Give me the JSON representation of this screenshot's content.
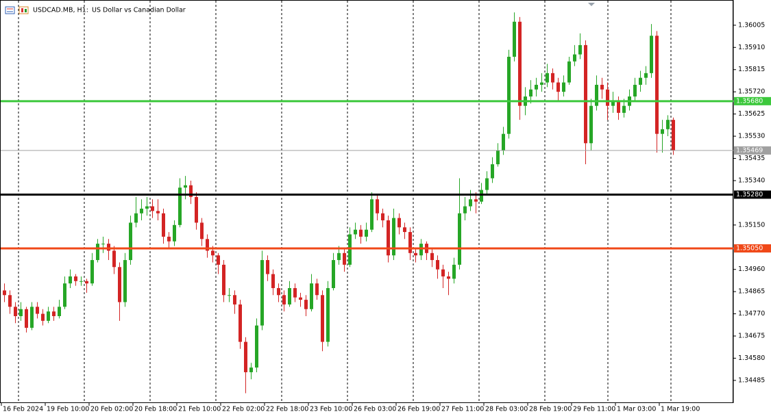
{
  "chart_data": {
    "type": "candlestick",
    "title": "USDCAD.MB, H1:",
    "subtitle": "US Dollar vs Canadian Dollar",
    "up_color": "#26a626",
    "down_color": "#d32424",
    "ylim": [
      1.34391,
      1.3611
    ],
    "yticks": [
      {
        "value": 1.36005,
        "label": "1.36005"
      },
      {
        "value": 1.3591,
        "label": "1.35910"
      },
      {
        "value": 1.35815,
        "label": "1.35815"
      },
      {
        "value": 1.3572,
        "label": "1.35720"
      },
      {
        "value": 1.35625,
        "label": "1.35625"
      },
      {
        "value": 1.3553,
        "label": "1.35530"
      },
      {
        "value": 1.35435,
        "label": "1.35435"
      },
      {
        "value": 1.3534,
        "label": "1.35340"
      },
      {
        "value": 1.3515,
        "label": "1.35150"
      },
      {
        "value": 1.3496,
        "label": "1.34960"
      },
      {
        "value": 1.34865,
        "label": "1.34865"
      },
      {
        "value": 1.3477,
        "label": "1.34770"
      },
      {
        "value": 1.34675,
        "label": "1.34675"
      },
      {
        "value": 1.3458,
        "label": "1.34580"
      },
      {
        "value": 1.34485,
        "label": "1.34485"
      }
    ],
    "xticks": [
      {
        "value": 0,
        "label": "16 Feb 2024"
      },
      {
        "value": 8,
        "label": "19 Feb 10:00"
      },
      {
        "value": 16,
        "label": "20 Feb 02:00"
      },
      {
        "value": 24,
        "label": "20 Feb 18:00"
      },
      {
        "value": 32,
        "label": "21 Feb 10:00"
      },
      {
        "value": 40,
        "label": "22 Feb 02:00"
      },
      {
        "value": 48,
        "label": "22 Feb 18:00"
      },
      {
        "value": 56,
        "label": "23 Feb 10:00"
      },
      {
        "value": 64,
        "label": "26 Feb 03:00"
      },
      {
        "value": 72,
        "label": "26 Feb 19:00"
      },
      {
        "value": 80,
        "label": "27 Feb 11:00"
      },
      {
        "value": 88,
        "label": "28 Feb 03:00"
      },
      {
        "value": 96,
        "label": "28 Feb 19:00"
      },
      {
        "value": 104,
        "label": "29 Feb 11:00"
      },
      {
        "value": 112,
        "label": "1 Mar 03:00"
      },
      {
        "value": 120,
        "label": "1 Mar 19:00"
      }
    ],
    "levels": [
      {
        "value": 1.3568,
        "label": "1.35680",
        "color": "#3cc83c"
      },
      {
        "value": 1.3528,
        "label": "1.35280",
        "color": "#000000"
      },
      {
        "value": 1.3505,
        "label": "1.35050",
        "color": "#f04818"
      },
      {
        "value": 1.35469,
        "label": "1.35469",
        "color": "#a0a0a0"
      }
    ],
    "ohlc": [
      [
        1.3487,
        1.349,
        1.3482,
        1.3485
      ],
      [
        1.3485,
        1.3487,
        1.3477,
        1.348
      ],
      [
        1.348,
        1.3482,
        1.3473,
        1.3476
      ],
      [
        1.3476,
        1.3482,
        1.3474,
        1.3479
      ],
      [
        1.3479,
        1.348,
        1.3469,
        1.3471
      ],
      [
        1.3471,
        1.3482,
        1.347,
        1.348
      ],
      [
        1.348,
        1.3482,
        1.3475,
        1.3477
      ],
      [
        1.3477,
        1.3479,
        1.3472,
        1.3474
      ],
      [
        1.3474,
        1.348,
        1.3473,
        1.3478
      ],
      [
        1.3478,
        1.348,
        1.3474,
        1.3476
      ],
      [
        1.3476,
        1.3483,
        1.3475,
        1.348
      ],
      [
        1.348,
        1.3493,
        1.3479,
        1.349
      ],
      [
        1.349,
        1.3496,
        1.3488,
        1.3493
      ],
      [
        1.3493,
        1.3494,
        1.3489,
        1.3491
      ],
      [
        1.3491,
        1.3493,
        1.3489,
        1.3491
      ],
      [
        1.3491,
        1.3492,
        1.3486,
        1.349
      ],
      [
        1.349,
        1.3503,
        1.3489,
        1.35
      ],
      [
        1.35,
        1.3509,
        1.3499,
        1.3507
      ],
      [
        1.3507,
        1.351,
        1.3503,
        1.3507
      ],
      [
        1.3507,
        1.3509,
        1.35,
        1.3504
      ],
      [
        1.3504,
        1.3506,
        1.3494,
        1.3497
      ],
      [
        1.3497,
        1.3499,
        1.3474,
        1.3482
      ],
      [
        1.3482,
        1.3503,
        1.348,
        1.35
      ],
      [
        1.35,
        1.3519,
        1.3498,
        1.3516
      ],
      [
        1.3516,
        1.3527,
        1.3514,
        1.352
      ],
      [
        1.352,
        1.3526,
        1.3517,
        1.3522
      ],
      [
        1.3522,
        1.3527,
        1.3519,
        1.3523
      ],
      [
        1.3523,
        1.3526,
        1.3518,
        1.3521
      ],
      [
        1.3521,
        1.3526,
        1.3517,
        1.352
      ],
      [
        1.352,
        1.3522,
        1.3507,
        1.351
      ],
      [
        1.351,
        1.3512,
        1.3505,
        1.3508
      ],
      [
        1.3508,
        1.3517,
        1.3506,
        1.3515
      ],
      [
        1.3515,
        1.3535,
        1.3514,
        1.3531
      ],
      [
        1.3531,
        1.3536,
        1.3526,
        1.3532
      ],
      [
        1.3532,
        1.3534,
        1.3524,
        1.3527
      ],
      [
        1.3527,
        1.3529,
        1.3513,
        1.3516
      ],
      [
        1.3516,
        1.3518,
        1.3506,
        1.3509
      ],
      [
        1.3509,
        1.3511,
        1.3501,
        1.3504
      ],
      [
        1.3504,
        1.3506,
        1.3499,
        1.3502
      ],
      [
        1.3502,
        1.3503,
        1.3494,
        1.3498
      ],
      [
        1.3498,
        1.35,
        1.3482,
        1.3485
      ],
      [
        1.3485,
        1.3488,
        1.3482,
        1.3485
      ],
      [
        1.3485,
        1.3487,
        1.3477,
        1.3481
      ],
      [
        1.3481,
        1.3483,
        1.3462,
        1.3465
      ],
      [
        1.3465,
        1.3467,
        1.3443,
        1.3452
      ],
      [
        1.3452,
        1.3456,
        1.3449,
        1.3454
      ],
      [
        1.3454,
        1.3475,
        1.3452,
        1.3472
      ],
      [
        1.3472,
        1.3504,
        1.347,
        1.35
      ],
      [
        1.35,
        1.3502,
        1.3491,
        1.3494
      ],
      [
        1.3494,
        1.3496,
        1.3485,
        1.3488
      ],
      [
        1.3488,
        1.349,
        1.3482,
        1.3485
      ],
      [
        1.3485,
        1.3487,
        1.3478,
        1.3481
      ],
      [
        1.3481,
        1.3491,
        1.348,
        1.3488
      ],
      [
        1.3488,
        1.349,
        1.3482,
        1.3484
      ],
      [
        1.3484,
        1.3486,
        1.348,
        1.3483
      ],
      [
        1.3483,
        1.3485,
        1.3476,
        1.3479
      ],
      [
        1.3479,
        1.3494,
        1.3478,
        1.349
      ],
      [
        1.349,
        1.3492,
        1.3483,
        1.3485
      ],
      [
        1.3485,
        1.3487,
        1.3461,
        1.3465
      ],
      [
        1.3465,
        1.3491,
        1.3463,
        1.3488
      ],
      [
        1.3488,
        1.3503,
        1.3487,
        1.35
      ],
      [
        1.35,
        1.3506,
        1.3498,
        1.3503
      ],
      [
        1.3503,
        1.3505,
        1.3495,
        1.3498
      ],
      [
        1.3498,
        1.3514,
        1.3497,
        1.3511
      ],
      [
        1.3511,
        1.3516,
        1.3509,
        1.3513
      ],
      [
        1.3513,
        1.3515,
        1.3507,
        1.351
      ],
      [
        1.351,
        1.3516,
        1.3508,
        1.3513
      ],
      [
        1.3513,
        1.3529,
        1.3512,
        1.3526
      ],
      [
        1.3526,
        1.3528,
        1.3517,
        1.352
      ],
      [
        1.352,
        1.3522,
        1.3514,
        1.3517
      ],
      [
        1.3517,
        1.3519,
        1.3499,
        1.3502
      ],
      [
        1.3502,
        1.3522,
        1.35,
        1.3518
      ],
      [
        1.3518,
        1.352,
        1.3511,
        1.3514
      ],
      [
        1.3514,
        1.3516,
        1.3509,
        1.3512
      ],
      [
        1.3512,
        1.3514,
        1.35,
        1.3503
      ],
      [
        1.3503,
        1.3505,
        1.3499,
        1.3502
      ],
      [
        1.3502,
        1.3509,
        1.35,
        1.3507
      ],
      [
        1.3507,
        1.3508,
        1.35,
        1.3503
      ],
      [
        1.3503,
        1.3505,
        1.3497,
        1.35
      ],
      [
        1.35,
        1.3502,
        1.3492,
        1.3496
      ],
      [
        1.3496,
        1.3498,
        1.3488,
        1.3493
      ],
      [
        1.3493,
        1.3495,
        1.3485,
        1.3492
      ],
      [
        1.3492,
        1.3501,
        1.349,
        1.3498
      ],
      [
        1.3498,
        1.3535,
        1.3496,
        1.352
      ],
      [
        1.352,
        1.3527,
        1.3517,
        1.3523
      ],
      [
        1.3523,
        1.353,
        1.3521,
        1.3526
      ],
      [
        1.3526,
        1.3529,
        1.352,
        1.3525
      ],
      [
        1.3525,
        1.3533,
        1.3524,
        1.353
      ],
      [
        1.353,
        1.3538,
        1.3528,
        1.3535
      ],
      [
        1.3535,
        1.3544,
        1.3533,
        1.3541
      ],
      [
        1.3541,
        1.355,
        1.354,
        1.3547
      ],
      [
        1.3547,
        1.3557,
        1.3545,
        1.3554
      ],
      [
        1.3554,
        1.359,
        1.3552,
        1.3587
      ],
      [
        1.3587,
        1.3606,
        1.3585,
        1.3602
      ],
      [
        1.3602,
        1.3604,
        1.356,
        1.3566
      ],
      [
        1.3566,
        1.3574,
        1.3562,
        1.357
      ],
      [
        1.357,
        1.3577,
        1.3567,
        1.3573
      ],
      [
        1.3573,
        1.3578,
        1.357,
        1.3575
      ],
      [
        1.3575,
        1.358,
        1.3572,
        1.3576
      ],
      [
        1.3576,
        1.3584,
        1.3574,
        1.358
      ],
      [
        1.358,
        1.3582,
        1.3573,
        1.3576
      ],
      [
        1.3576,
        1.3578,
        1.3568,
        1.3572
      ],
      [
        1.3572,
        1.3579,
        1.357,
        1.3576
      ],
      [
        1.3576,
        1.3587,
        1.3575,
        1.3585
      ],
      [
        1.3585,
        1.3592,
        1.3583,
        1.3588
      ],
      [
        1.3588,
        1.3597,
        1.3586,
        1.3592
      ],
      [
        1.3592,
        1.3594,
        1.3541,
        1.355
      ],
      [
        1.355,
        1.3569,
        1.3547,
        1.3566
      ],
      [
        1.3566,
        1.3579,
        1.3564,
        1.3575
      ],
      [
        1.3575,
        1.3578,
        1.3569,
        1.3573
      ],
      [
        1.3573,
        1.3576,
        1.356,
        1.3566
      ],
      [
        1.3566,
        1.3572,
        1.3563,
        1.3568
      ],
      [
        1.3568,
        1.357,
        1.356,
        1.3563
      ],
      [
        1.3563,
        1.3569,
        1.3561,
        1.3566
      ],
      [
        1.3566,
        1.3573,
        1.3564,
        1.357
      ],
      [
        1.357,
        1.3578,
        1.3568,
        1.3575
      ],
      [
        1.3575,
        1.3581,
        1.3572,
        1.3578
      ],
      [
        1.3578,
        1.3583,
        1.3575,
        1.358
      ],
      [
        1.358,
        1.3601,
        1.3578,
        1.3596
      ],
      [
        1.3596,
        1.3598,
        1.3546,
        1.3554
      ],
      [
        1.3554,
        1.356,
        1.3546,
        1.3556
      ],
      [
        1.3556,
        1.3562,
        1.3553,
        1.356
      ],
      [
        1.356,
        1.3561,
        1.3545,
        1.3547
      ]
    ]
  }
}
